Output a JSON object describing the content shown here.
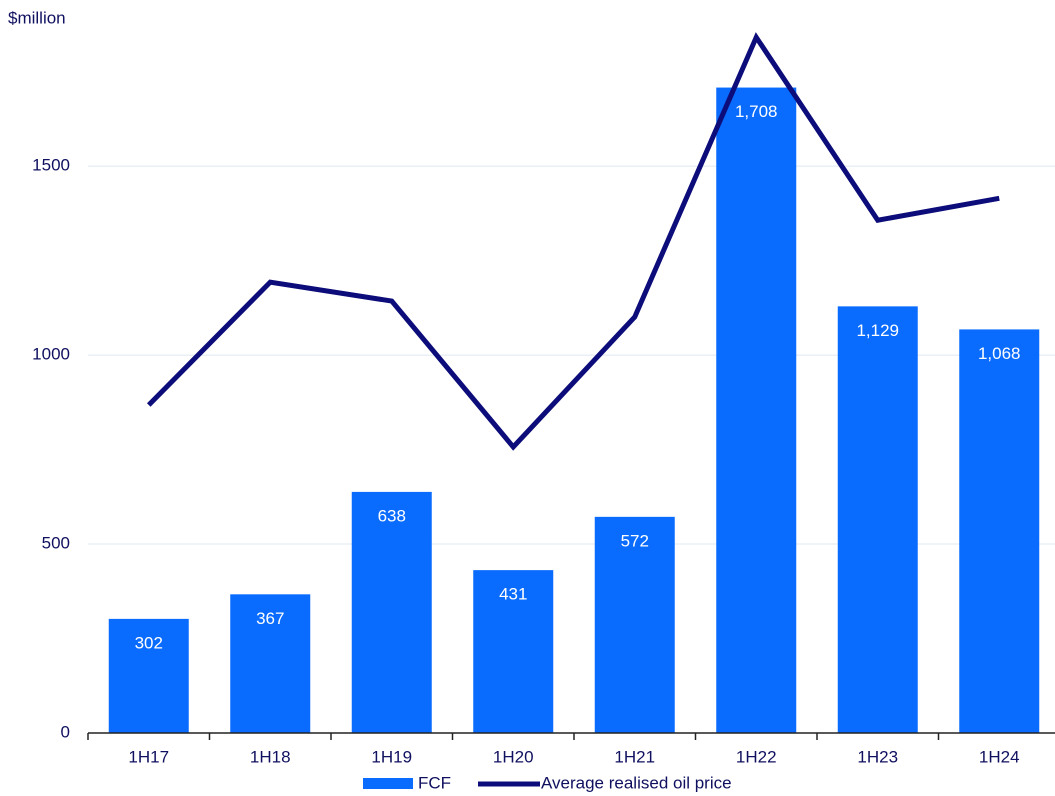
{
  "chart_data": {
    "type": "bar",
    "y_label": "$million",
    "categories": [
      "1H17",
      "1H18",
      "1H19",
      "1H20",
      "1H21",
      "1H22",
      "1H23",
      "1H24"
    ],
    "series": [
      {
        "name": "FCF",
        "type": "bar",
        "color": "#0a6cff",
        "values": [
          302,
          367,
          638,
          431,
          572,
          1708,
          1129,
          1068
        ],
        "value_labels": [
          "302",
          "367",
          "638",
          "431",
          "572",
          "1,708",
          "1,129",
          "1,068"
        ]
      },
      {
        "name": "Average realised oil price",
        "type": "line",
        "color": "#0c0c7a",
        "values": [
          868,
          1193,
          1143,
          757,
          1101,
          1841,
          1357,
          1415
        ]
      }
    ],
    "ylim": [
      0,
      1900
    ],
    "yticks": [
      0,
      500,
      1000,
      1500
    ],
    "grid": true
  }
}
